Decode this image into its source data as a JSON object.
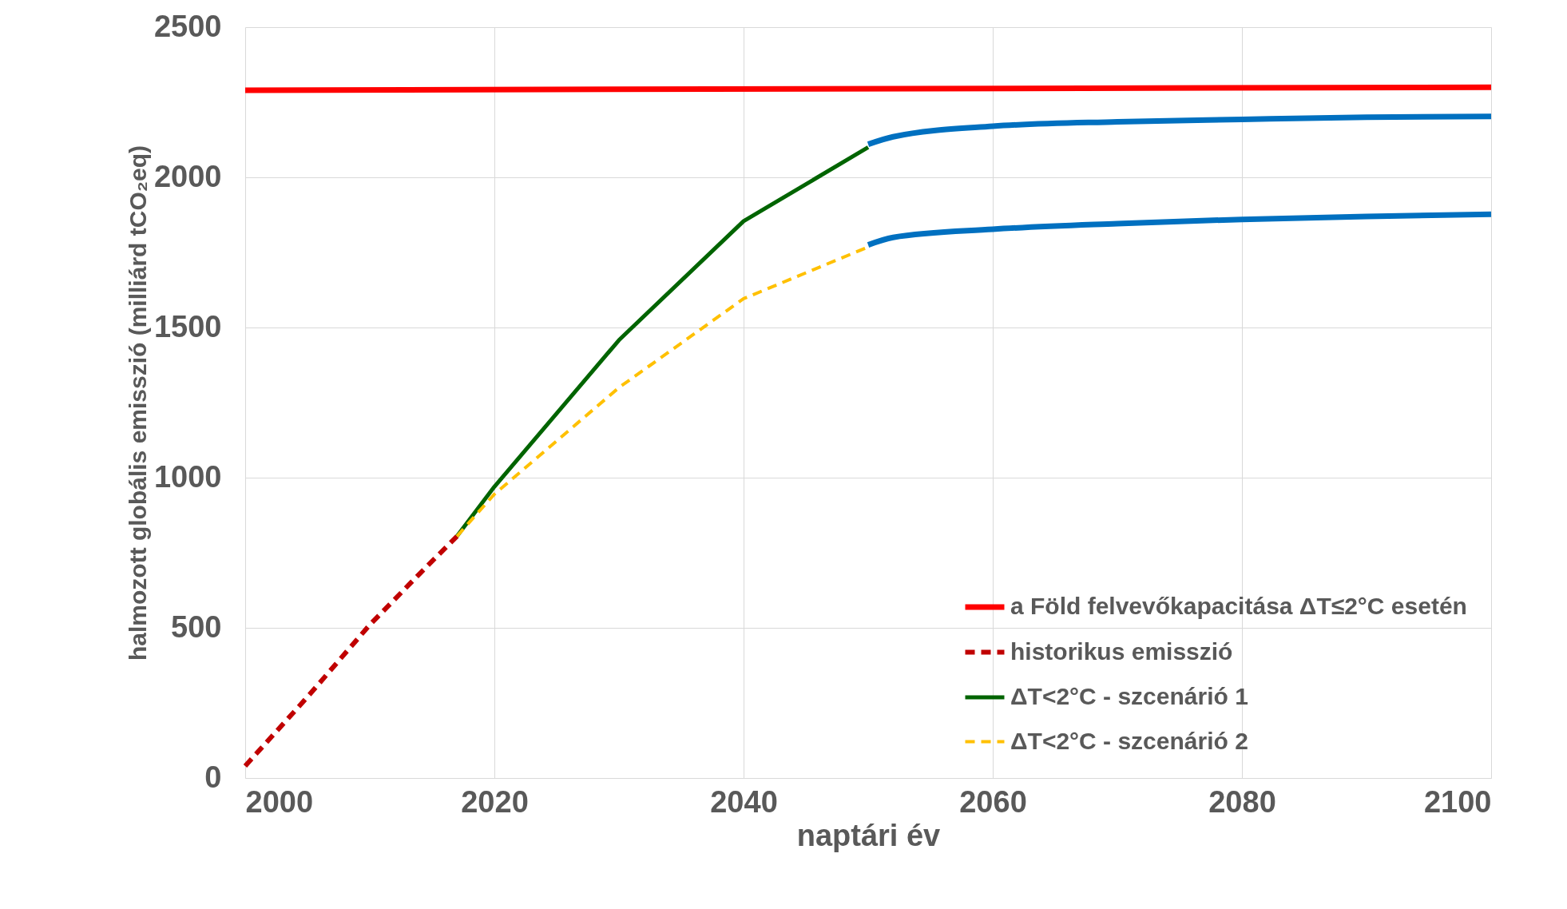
{
  "chart_data": {
    "type": "line",
    "xlabel": "naptári év",
    "ylabel": "halmozott globális emisszió (milliárd tCO₂eq)",
    "xlim": [
      2000,
      2100
    ],
    "xticks": [
      2000,
      2020,
      2040,
      2060,
      2080,
      2100
    ],
    "ylim": [
      0,
      2500
    ],
    "yticks": [
      0,
      500,
      1000,
      1500,
      2000,
      2500
    ],
    "grid": true,
    "legend": "bottom right",
    "series": [
      {
        "name": "a Föld felvevőkapacitása ΔT≤2°C esetén",
        "color": "#ff0000",
        "line_style": "solid",
        "x": [
          2000,
          2100
        ],
        "values": [
          2290,
          2300
        ]
      },
      {
        "name": "historikus emisszió",
        "color": "#c00000",
        "line_style": "dashed",
        "x": [
          2000,
          2005,
          2010,
          2014,
          2017
        ],
        "values": [
          40,
          270,
          510,
          680,
          805
        ]
      },
      {
        "name": "ΔT<2°C - szcenárió 1",
        "color": "#006400",
        "line_style": "solid",
        "x": [
          2017,
          2020,
          2030,
          2040,
          2050
        ],
        "values": [
          805,
          970,
          1458,
          1854,
          2100
        ]
      },
      {
        "name": "ΔT<2°C - szcenárió 2",
        "color": "#ffc000",
        "line_style": "dashed",
        "x": [
          2017,
          2020,
          2030,
          2040,
          2050
        ],
        "values": [
          805,
          945,
          1300,
          1596,
          1768
        ]
      },
      {
        "color": "#0070c0",
        "line_style": "solid",
        "x": [
          2050,
          2052,
          2060,
          2070,
          2080,
          2090,
          2100
        ],
        "values": [
          2110,
          2135,
          2170,
          2185,
          2193,
          2200,
          2203
        ]
      },
      {
        "color": "#0070c0",
        "line_style": "solid",
        "x": [
          2050,
          2052,
          2060,
          2070,
          2080,
          2090,
          2100
        ],
        "values": [
          1775,
          1800,
          1827,
          1846,
          1860,
          1870,
          1877
        ]
      }
    ]
  }
}
